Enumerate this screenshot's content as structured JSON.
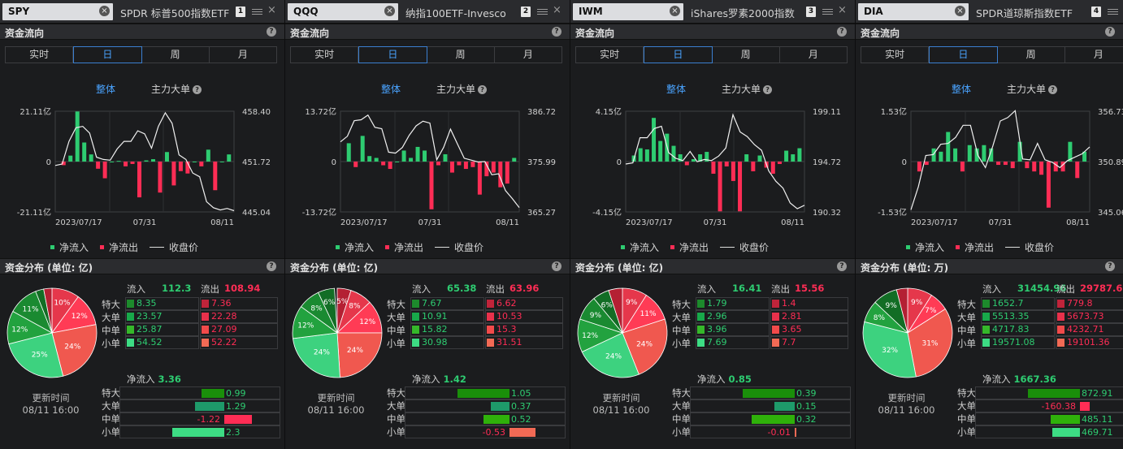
{
  "labels": {
    "flow_title": "资金流向",
    "dist_title_prefix": "资金分布 (单位: ",
    "periods": [
      "实时",
      "日",
      "周",
      "月"
    ],
    "active_period": "日",
    "mode_all": "整体",
    "mode_main": "主力大单",
    "legend_in": "净流入",
    "legend_out": "净流出",
    "legend_close": "收盘价",
    "col_in": "流入",
    "col_out": "流出",
    "row_labels": [
      "特大",
      "大单",
      "中单",
      "小单"
    ],
    "net_in": "净流入",
    "update_label": "更新时间",
    "help": "?",
    "clear": "×",
    "close": "×"
  },
  "colors": {
    "green": "#2ecc71",
    "red": "#ff2d55",
    "active": "#4aa3ff"
  },
  "panels": [
    {
      "symbol": "SPY",
      "name": "SPDR 标普500指数ETF",
      "index": "1",
      "unit": "亿",
      "update_time": "08/11 16:00",
      "chart_data": {
        "type": "bar+line",
        "y_left": {
          "top": "21.11亿",
          "mid": "0",
          "bot": "-21.11亿",
          "max": 21.11
        },
        "y_right": {
          "top": "458.40",
          "mid": "451.72",
          "bot": "445.04",
          "min": 445.04,
          "max": 458.4
        },
        "x_ticks": [
          "2023/07/17",
          "07/31",
          "08/11"
        ],
        "bars": [
          -1.5,
          2.5,
          21,
          8,
          3,
          -3,
          -7,
          0,
          0.3,
          -2,
          -1,
          -15,
          0.5,
          1,
          -13,
          4,
          -10,
          -4,
          -5,
          0,
          -2,
          5,
          -12,
          0,
          3
        ],
        "close": [
          451.2,
          451.4,
          454.4,
          456.2,
          456.4,
          455.5,
          452.3,
          452.0,
          451.9,
          453.4,
          454.4,
          454.4,
          455.8,
          455.4,
          453.5,
          456.4,
          458.2,
          456.8,
          452.6,
          452.0,
          450.2,
          449.7,
          446.4,
          445.6,
          445.3,
          445.5,
          445.2
        ]
      },
      "dist": {
        "slices": [
          {
            "label": "10%",
            "pct": 10,
            "color": "#e5374b"
          },
          {
            "label": "12%",
            "pct": 12,
            "color": "#ff3b55"
          },
          {
            "label": "24%",
            "pct": 24,
            "color": "#f0584f"
          },
          {
            "label": "25%",
            "pct": 25,
            "color": "#3dd27f"
          },
          {
            "label": "12%",
            "pct": 12,
            "color": "#22a23f"
          },
          {
            "label": "11%",
            "pct": 11,
            "color": "#1a8a31"
          },
          {
            "label": "",
            "pct": 3,
            "color": "#126d25"
          },
          {
            "label": "",
            "pct": 3,
            "color": "#b42033"
          }
        ],
        "in_total": "112.3",
        "out_total": "108.94",
        "in": [
          "8.35",
          "23.57",
          "25.87",
          "54.52"
        ],
        "out": [
          "7.36",
          "22.28",
          "27.09",
          "52.22"
        ],
        "net_total": "3.36",
        "net": [
          "0.99",
          "1.29",
          "-1.22",
          "2.3"
        ],
        "net_vals": [
          0.99,
          1.29,
          -1.22,
          2.3
        ]
      }
    },
    {
      "symbol": "QQQ",
      "name": "纳指100ETF-Invesco",
      "index": "2",
      "unit": "亿",
      "update_time": "08/11 16:00",
      "chart_data": {
        "type": "bar+line",
        "y_left": {
          "top": "13.72亿",
          "mid": "0",
          "bot": "-13.72亿",
          "max": 13.72
        },
        "y_right": {
          "top": "386.72",
          "mid": "375.99",
          "bot": "365.27",
          "min": 365.27,
          "max": 386.72
        },
        "x_ticks": [
          "2023/07/17",
          "07/31",
          "08/11"
        ],
        "bars": [
          5,
          -1.5,
          7,
          1.5,
          1,
          -1,
          -2,
          0,
          3,
          1,
          4,
          3,
          -13,
          -1,
          2,
          -3,
          -1,
          -2,
          -1.5,
          -9,
          -4,
          -3,
          -7,
          -6,
          1
        ],
        "close": [
          380.2,
          381.4,
          384.7,
          384.9,
          385.9,
          383.3,
          383.0,
          378.0,
          377.8,
          379.0,
          381.6,
          383.6,
          384.6,
          384.2,
          376.4,
          379.0,
          382.9,
          379.8,
          376.7,
          376.3,
          375.9,
          376.0,
          373.2,
          373.4,
          369.8,
          368.1,
          366.2
        ]
      },
      "dist": {
        "slices": [
          {
            "label": "5%",
            "pct": 5,
            "color": "#b42033"
          },
          {
            "label": "8%",
            "pct": 8,
            "color": "#e5374b"
          },
          {
            "label": "12%",
            "pct": 12,
            "color": "#ff3b55"
          },
          {
            "label": "24%",
            "pct": 24,
            "color": "#f0584f"
          },
          {
            "label": "24%",
            "pct": 24,
            "color": "#3dd27f"
          },
          {
            "label": "12%",
            "pct": 12,
            "color": "#22a23f"
          },
          {
            "label": "8%",
            "pct": 8,
            "color": "#1a8a31"
          },
          {
            "label": "6%",
            "pct": 6,
            "color": "#126d25"
          }
        ],
        "in_total": "65.38",
        "out_total": "63.96",
        "in": [
          "7.67",
          "10.91",
          "15.82",
          "30.98"
        ],
        "out": [
          "6.62",
          "10.53",
          "15.3",
          "31.51"
        ],
        "net_total": "1.42",
        "net": [
          "1.05",
          "0.37",
          "0.52",
          "-0.53"
        ],
        "net_vals": [
          1.05,
          0.37,
          0.52,
          -0.53
        ]
      }
    },
    {
      "symbol": "IWM",
      "name": "iShares罗素2000指数",
      "index": "3",
      "unit": "亿",
      "update_time": "08/11 16:00",
      "chart_data": {
        "type": "bar+line",
        "y_left": {
          "top": "4.15亿",
          "mid": "0",
          "bot": "-4.15亿",
          "max": 4.15
        },
        "y_right": {
          "top": "199.11",
          "mid": "194.72",
          "bot": "190.32",
          "min": 190.32,
          "max": 199.11
        },
        "x_ticks": [
          "2023/07/17",
          "07/31",
          "08/11"
        ],
        "bars": [
          0.5,
          1.1,
          1.0,
          3.6,
          1.7,
          2.3,
          1.3,
          0.6,
          -0.3,
          0.2,
          0.6,
          0.8,
          -1,
          -4.1,
          -0.4,
          -1.6,
          -4.1,
          0.6,
          -0.8,
          0.5,
          -0.5,
          -1.0,
          -0.2,
          0.9,
          0.6,
          1.1
        ],
        "close": [
          194.5,
          194.6,
          196.8,
          196.8,
          197.6,
          197.8,
          195.5,
          195.0,
          194.8,
          195.6,
          194.7,
          194.9,
          194.8,
          195.2,
          195.9,
          198.8,
          197.3,
          196.9,
          196.2,
          195.7,
          193.9,
          193.0,
          192.4,
          191.1,
          190.6,
          190.9
        ]
      },
      "dist": {
        "slices": [
          {
            "label": "9%",
            "pct": 9,
            "color": "#e5374b"
          },
          {
            "label": "11%",
            "pct": 11,
            "color": "#ff3b55"
          },
          {
            "label": "24%",
            "pct": 24,
            "color": "#f0584f"
          },
          {
            "label": "24%",
            "pct": 24,
            "color": "#3dd27f"
          },
          {
            "label": "12%",
            "pct": 12,
            "color": "#22a23f"
          },
          {
            "label": "9%",
            "pct": 9,
            "color": "#1a8a31"
          },
          {
            "label": "6%",
            "pct": 6,
            "color": "#126d25"
          },
          {
            "label": "",
            "pct": 5,
            "color": "#b42033"
          }
        ],
        "in_total": "16.41",
        "out_total": "15.56",
        "in": [
          "1.79",
          "2.96",
          "3.96",
          "7.69"
        ],
        "out": [
          "1.4",
          "2.81",
          "3.65",
          "7.7"
        ],
        "net_total": "0.85",
        "net": [
          "0.39",
          "0.15",
          "0.32",
          "-0.01"
        ],
        "net_vals": [
          0.39,
          0.15,
          0.32,
          -0.01
        ]
      }
    },
    {
      "symbol": "DIA",
      "name": "SPDR道琼斯指数ETF",
      "index": "4",
      "unit": "万",
      "update_time": "08/11 16:00",
      "chart_data": {
        "type": "bar+line",
        "y_left": {
          "top": "1.53亿",
          "mid": "0",
          "bot": "-1.53亿",
          "max": 1.53
        },
        "y_right": {
          "top": "356.73",
          "mid": "350.89",
          "bot": "345.06",
          "min": 345.06,
          "max": 356.73
        },
        "x_ticks": [
          "2023/07/17",
          "07/31",
          "08/11"
        ],
        "bars": [
          -0.3,
          -0.1,
          0.4,
          0.3,
          0.9,
          0.4,
          -0.3,
          0.5,
          0.4,
          0.5,
          0.4,
          -0.1,
          -0.1,
          -0.2,
          0.6,
          -0.2,
          -0.3,
          -0.4,
          -1.4,
          -0.3,
          -0.3,
          0.6,
          -0.5,
          0.3
        ],
        "close": [
          345.3,
          348.0,
          351.6,
          351.7,
          352.9,
          353.0,
          353.7,
          355.1,
          355.1,
          351.6,
          350.2,
          352.7,
          355.6,
          356.0,
          356.8,
          351.2,
          351.1,
          353.0,
          351.1,
          350.8,
          350.2,
          351.0,
          351.4,
          351.8,
          352.6
        ]
      },
      "dist": {
        "slices": [
          {
            "label": "9%",
            "pct": 9,
            "color": "#e5374b"
          },
          {
            "label": "7%",
            "pct": 7,
            "color": "#ff3b55"
          },
          {
            "label": "31%",
            "pct": 31,
            "color": "#f0584f"
          },
          {
            "label": "32%",
            "pct": 32,
            "color": "#3dd27f"
          },
          {
            "label": "8%",
            "pct": 8,
            "color": "#22a23f"
          },
          {
            "label": "9%",
            "pct": 9,
            "color": "#126d25"
          },
          {
            "label": "",
            "pct": 4,
            "color": "#b42033"
          }
        ],
        "in_total": "31454.96",
        "out_total": "29787.6",
        "in": [
          "1652.7",
          "5513.35",
          "4717.83",
          "19571.08"
        ],
        "out": [
          "779.8",
          "5673.73",
          "4232.71",
          "19101.36"
        ],
        "net_total": "1667.36",
        "net": [
          "872.91",
          "-160.38",
          "485.11",
          "469.71"
        ],
        "net_vals": [
          872.91,
          -160.38,
          485.11,
          469.71
        ]
      }
    }
  ]
}
